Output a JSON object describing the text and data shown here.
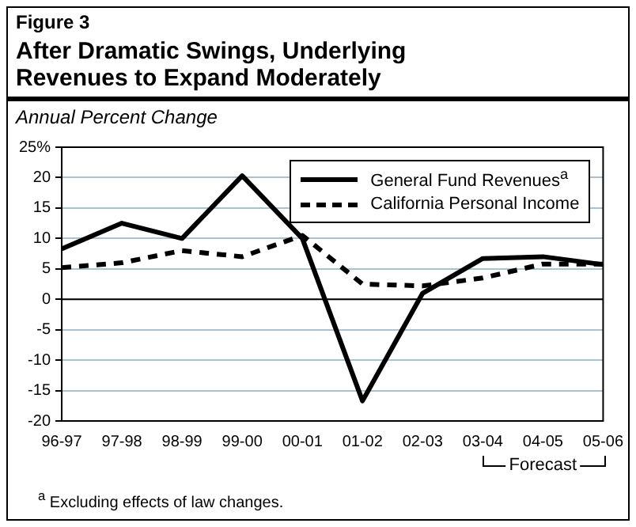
{
  "chart_data": {
    "type": "line",
    "subtitle": "Figure 3",
    "title": "After Dramatic Swings, Underlying Revenues to Expand Moderately",
    "ylabel": "Annual Percent Change",
    "categories": [
      "96-97",
      "97-98",
      "98-99",
      "99-00",
      "00-01",
      "01-02",
      "02-03",
      "03-04",
      "04-05",
      "05-06"
    ],
    "series": [
      {
        "name": "General Fund Revenues$^{a}$",
        "color": "#000000",
        "line_style": "solid",
        "values": [
          8.3,
          12.5,
          10,
          20.3,
          10,
          -16.7,
          1,
          6.7,
          7,
          5.7
        ]
      },
      {
        "name": "California Personal Income",
        "color": "#000000",
        "line_style": "dashed",
        "values": [
          5.2,
          6,
          8,
          7,
          10.5,
          2.5,
          2.2,
          3.5,
          5.8,
          5.8
        ]
      }
    ],
    "ylim": [
      -20,
      25
    ],
    "yticks": [
      -20,
      -15,
      -10,
      -5,
      0,
      5,
      10,
      15,
      20,
      {
        "value": 25,
        "label": "25%"
      }
    ],
    "grid": "y",
    "legend": "top right",
    "marker": "none",
    "ref_lines": [
      {
        "axis": "y",
        "value": 0,
        "color": "#000000"
      }
    ],
    "annotations": [
      "$^{a}$ Excluding effects of law changes.",
      "Forecast"
    ]
  }
}
